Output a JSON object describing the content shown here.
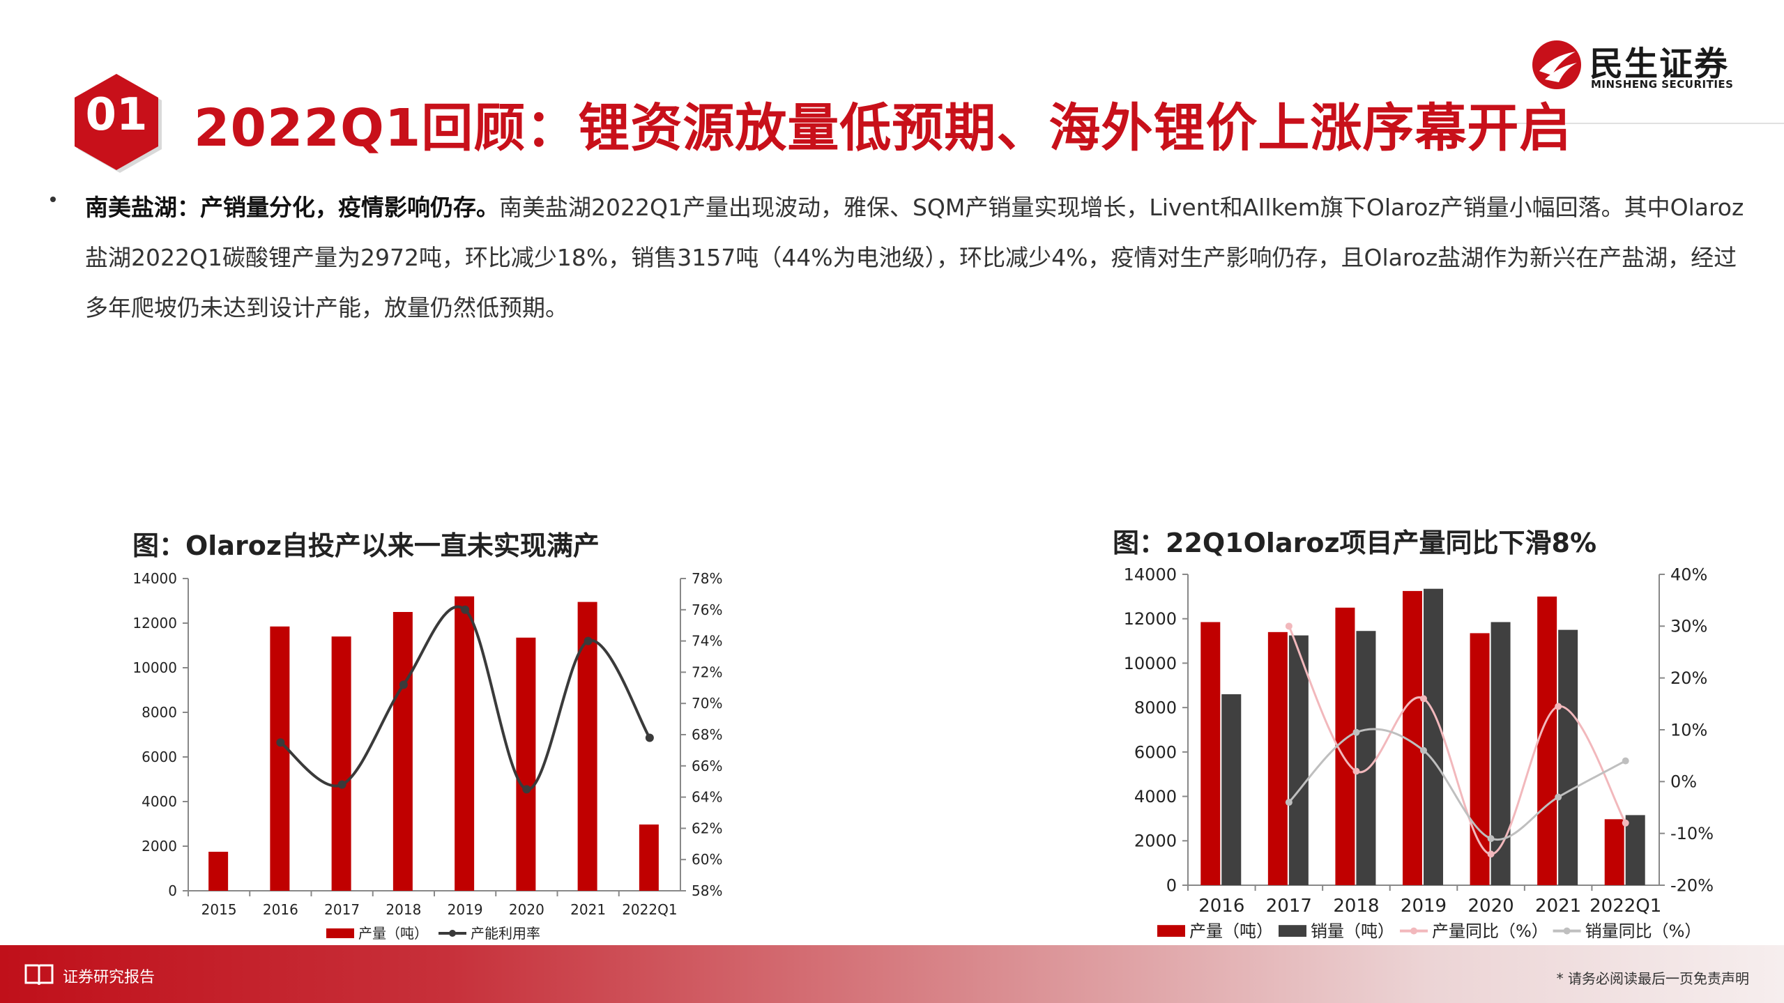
{
  "brand": {
    "name_cn": "民生证券",
    "name_en": "MINSHENG SECURITIES",
    "color": "#c8101a"
  },
  "slide": {
    "number": "01",
    "title": "2022Q1回顾：锂资源放量低预期、海外锂价上涨序幕开启"
  },
  "bullet": {
    "lead": "南美盐湖：产销量分化，疫情影响仍存。",
    "body": "南美盐湖2022Q1产量出现波动，雅保、SQM产销量实现增长，Livent和Allkem旗下Olaroz产销量小幅回落。其中Olaroz盐湖2022Q1碳酸锂产量为2972吨，环比减少18%，销售3157吨（44%为电池级），环比减少4%，疫情对生产影响仍存，且Olaroz盐湖作为新兴在产盐湖，经过多年爬坡仍未达到设计产能，放量仍然低预期。"
  },
  "footer": {
    "left": "证券研究报告",
    "right": "* 请务必阅读最后一页免责声明"
  },
  "chart_data": [
    {
      "type": "bar",
      "title": "图：Olaroz自投产以来一直未实现满产",
      "categories": [
        "2015",
        "2016",
        "2017",
        "2018",
        "2019",
        "2020",
        "2021",
        "2022Q1"
      ],
      "ylim": [
        0,
        14000
      ],
      "yticks": [
        0,
        2000,
        4000,
        6000,
        8000,
        10000,
        12000,
        14000
      ],
      "y2lim": [
        58,
        78
      ],
      "y2ticks": [
        "58%",
        "60%",
        "62%",
        "64%",
        "66%",
        "68%",
        "70%",
        "72%",
        "74%",
        "76%",
        "78%"
      ],
      "series": [
        {
          "name": "产量（吨）",
          "kind": "bar",
          "axis": "left",
          "color": "#c00000",
          "values": [
            1750,
            11850,
            11400,
            12500,
            13200,
            11350,
            12950,
            2972
          ]
        },
        {
          "name": "产能利用率",
          "kind": "line",
          "axis": "right",
          "color": "#3a3a3a",
          "values": [
            null,
            67.5,
            64.8,
            71.2,
            76.0,
            64.5,
            74.0,
            67.8
          ]
        }
      ],
      "legend": "bottom"
    },
    {
      "type": "bar",
      "title": "图：22Q1Olaroz项目产量同比下滑8%",
      "categories": [
        "2016",
        "2017",
        "2018",
        "2019",
        "2020",
        "2021",
        "2022Q1"
      ],
      "ylim": [
        0,
        14000
      ],
      "yticks": [
        0,
        2000,
        4000,
        6000,
        8000,
        10000,
        12000,
        14000
      ],
      "y2lim": [
        -20,
        40
      ],
      "y2ticks": [
        "-20%",
        "-10%",
        "0%",
        "10%",
        "20%",
        "30%",
        "40%"
      ],
      "series": [
        {
          "name": "产量（吨）",
          "kind": "bar",
          "axis": "left",
          "color": "#c00000",
          "values": [
            11850,
            11400,
            12500,
            13250,
            11350,
            13000,
            2972
          ]
        },
        {
          "name": "销量（吨）",
          "kind": "bar",
          "axis": "left",
          "color": "#404040",
          "values": [
            8600,
            11250,
            11450,
            13350,
            11850,
            11500,
            3157
          ]
        },
        {
          "name": "产量同比（%）",
          "kind": "line",
          "axis": "right",
          "color": "#f2b8bc",
          "values": [
            null,
            30.0,
            2.0,
            16.0,
            -14.0,
            14.5,
            -8.0
          ]
        },
        {
          "name": "销量同比（%）",
          "kind": "line",
          "axis": "right",
          "color": "#bfbfbf",
          "values": [
            null,
            -4.0,
            9.5,
            6.0,
            -11.0,
            -3.0,
            4.0
          ]
        }
      ],
      "legend": "bottom"
    }
  ]
}
